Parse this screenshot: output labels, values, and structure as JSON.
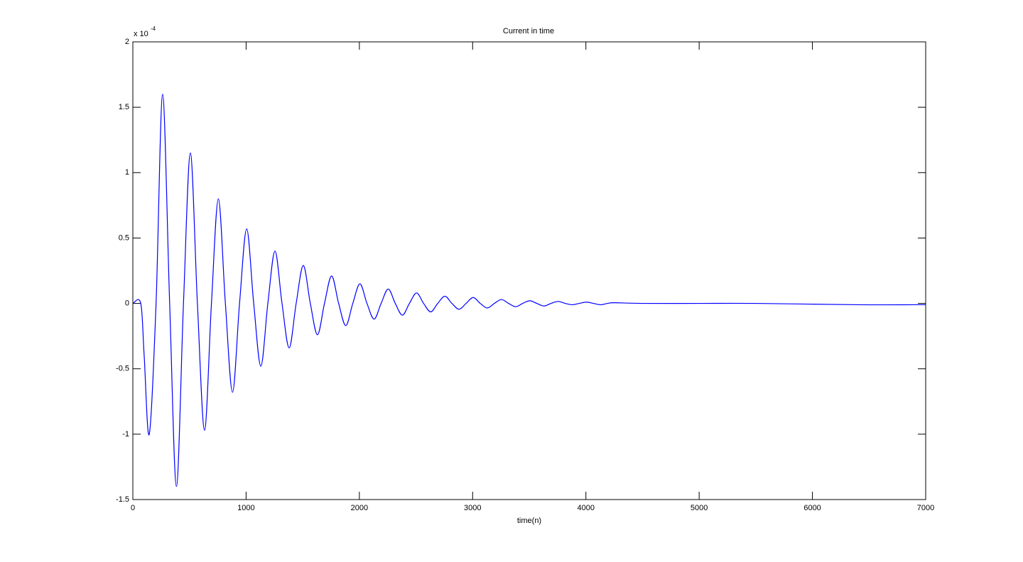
{
  "chart_data": {
    "type": "line",
    "title": "Current in time",
    "x_label": "time(n)",
    "y_scale_base": "x 10",
    "y_scale_exponent": "-4",
    "color": "#0000ff",
    "xlim": [
      0,
      7000
    ],
    "ylim": [
      -1.5,
      2
    ],
    "xticks": [
      0,
      1000,
      2000,
      3000,
      4000,
      5000,
      6000,
      7000
    ],
    "yticks": [
      -1.5,
      -1,
      -0.5,
      0,
      0.5,
      1,
      1.5,
      2
    ],
    "x": [
      0,
      70,
      100,
      145,
      205,
      263,
      325,
      385,
      447,
      508,
      570,
      633,
      694,
      755,
      817,
      880,
      942,
      1005,
      1067,
      1130,
      1192,
      1255,
      1317,
      1380,
      1442,
      1505,
      1567,
      1630,
      1692,
      1755,
      1817,
      1880,
      1942,
      2005,
      2067,
      2130,
      2192,
      2255,
      2317,
      2380,
      2442,
      2505,
      2567,
      2630,
      2692,
      2755,
      2817,
      2880,
      2942,
      3005,
      3067,
      3130,
      3192,
      3255,
      3317,
      3380,
      3442,
      3505,
      3567,
      3630,
      3692,
      3755,
      3817,
      3880,
      3942,
      4005,
      4067,
      4130,
      4192,
      4255,
      4500,
      5000,
      5500,
      6400,
      7000
    ],
    "values": [
      0,
      0,
      -0.4,
      -1.0,
      0,
      1.6,
      0,
      -1.4,
      0,
      1.15,
      0,
      -0.97,
      0,
      0.8,
      0,
      -0.68,
      0,
      0.57,
      0,
      -0.48,
      0,
      0.4,
      0,
      -0.34,
      0,
      0.29,
      0,
      -0.24,
      0,
      0.21,
      0,
      -0.17,
      0,
      0.15,
      0,
      -0.12,
      0,
      0.11,
      0,
      -0.09,
      0,
      0.08,
      0,
      -0.065,
      0,
      0.055,
      0,
      -0.045,
      0,
      0.045,
      0,
      -0.035,
      0,
      0.03,
      0,
      -0.025,
      0,
      0.02,
      0,
      -0.02,
      0,
      0.015,
      0,
      -0.01,
      0,
      0.01,
      0,
      -0.01,
      0,
      0.005,
      0,
      0,
      0,
      -0.01,
      -0.01
    ]
  }
}
